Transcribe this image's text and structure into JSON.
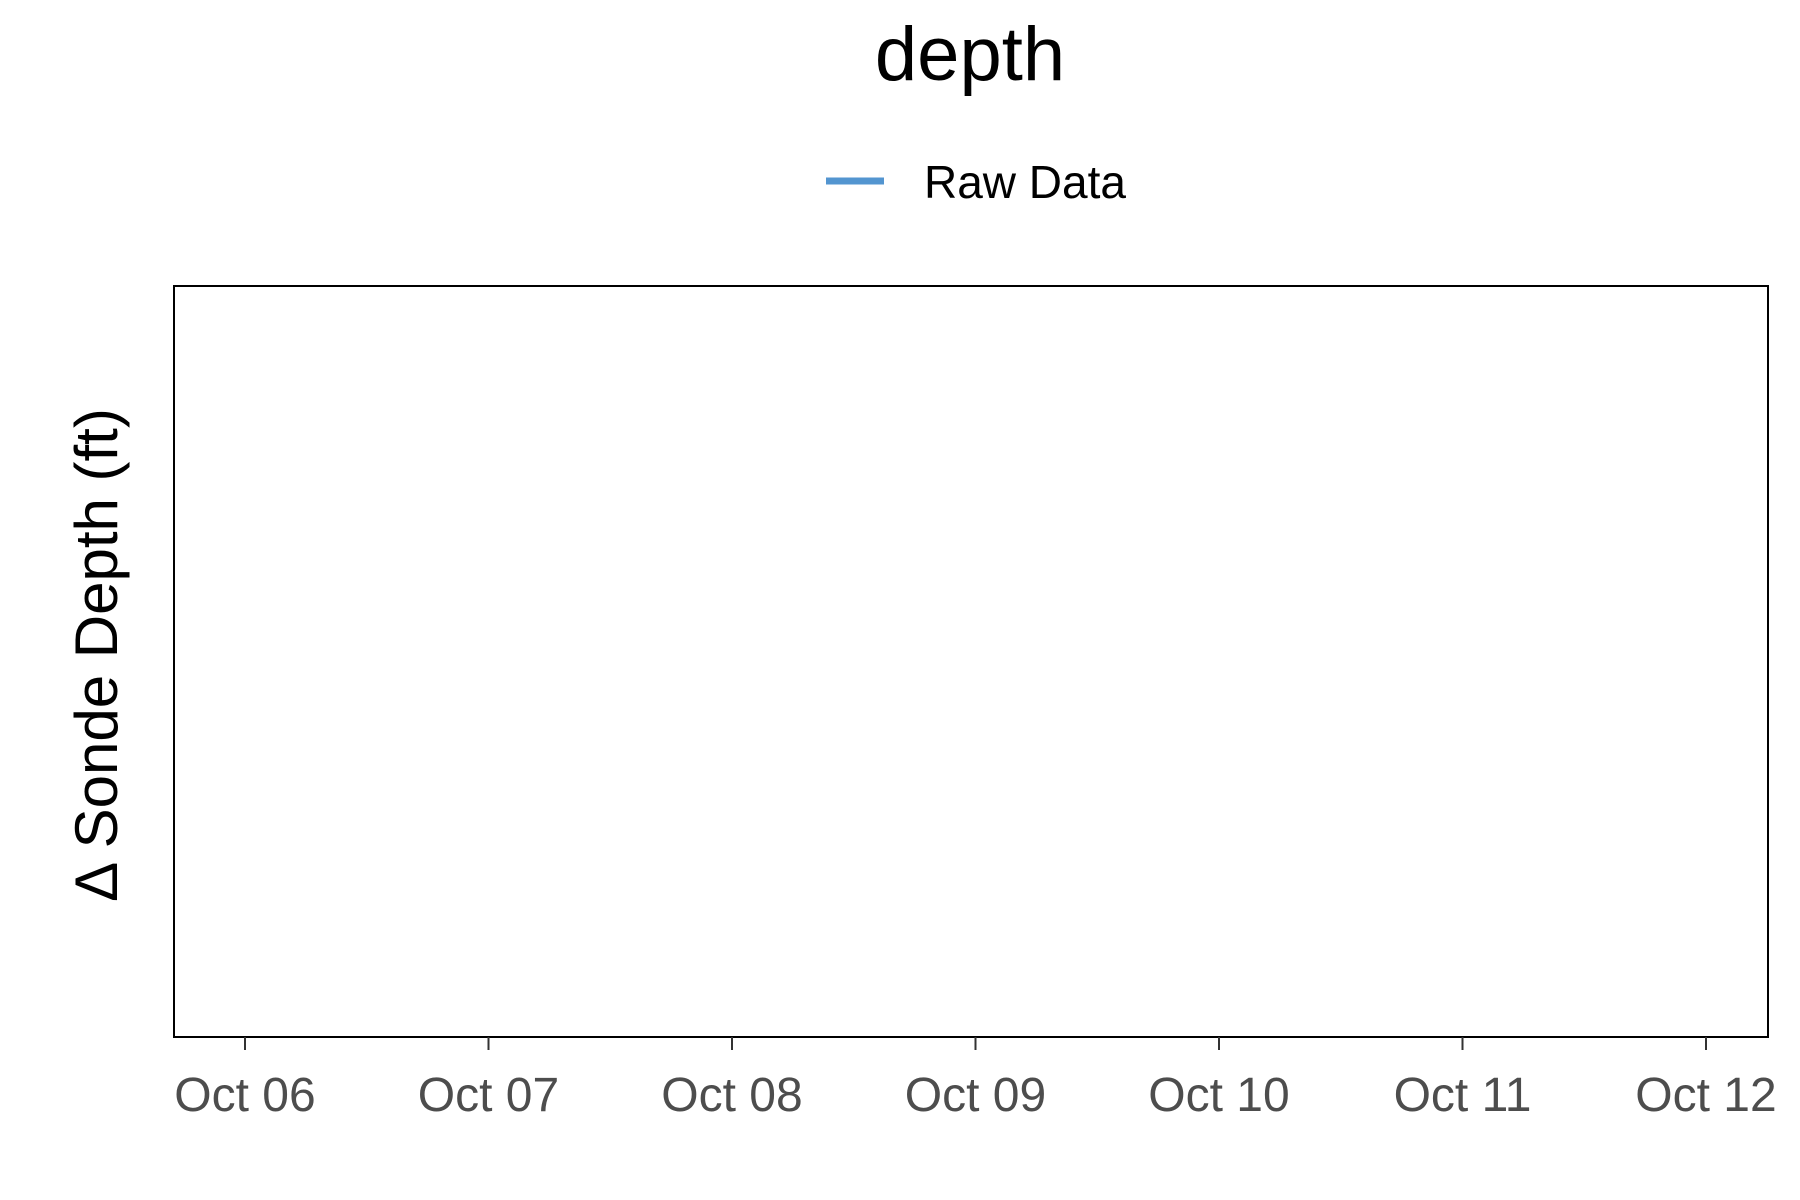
{
  "chart_data": {
    "type": "line",
    "title": "depth",
    "xlabel": "",
    "ylabel": "Δ Sonde Depth (ft)",
    "x_tick_labels": [
      "Oct 06",
      "Oct 07",
      "Oct 08",
      "Oct 09",
      "Oct 10",
      "Oct 11",
      "Oct 12"
    ],
    "legend_position": "top",
    "grid": false,
    "series": [
      {
        "name": "Raw Data",
        "color": "#5395d0",
        "values": []
      }
    ]
  }
}
